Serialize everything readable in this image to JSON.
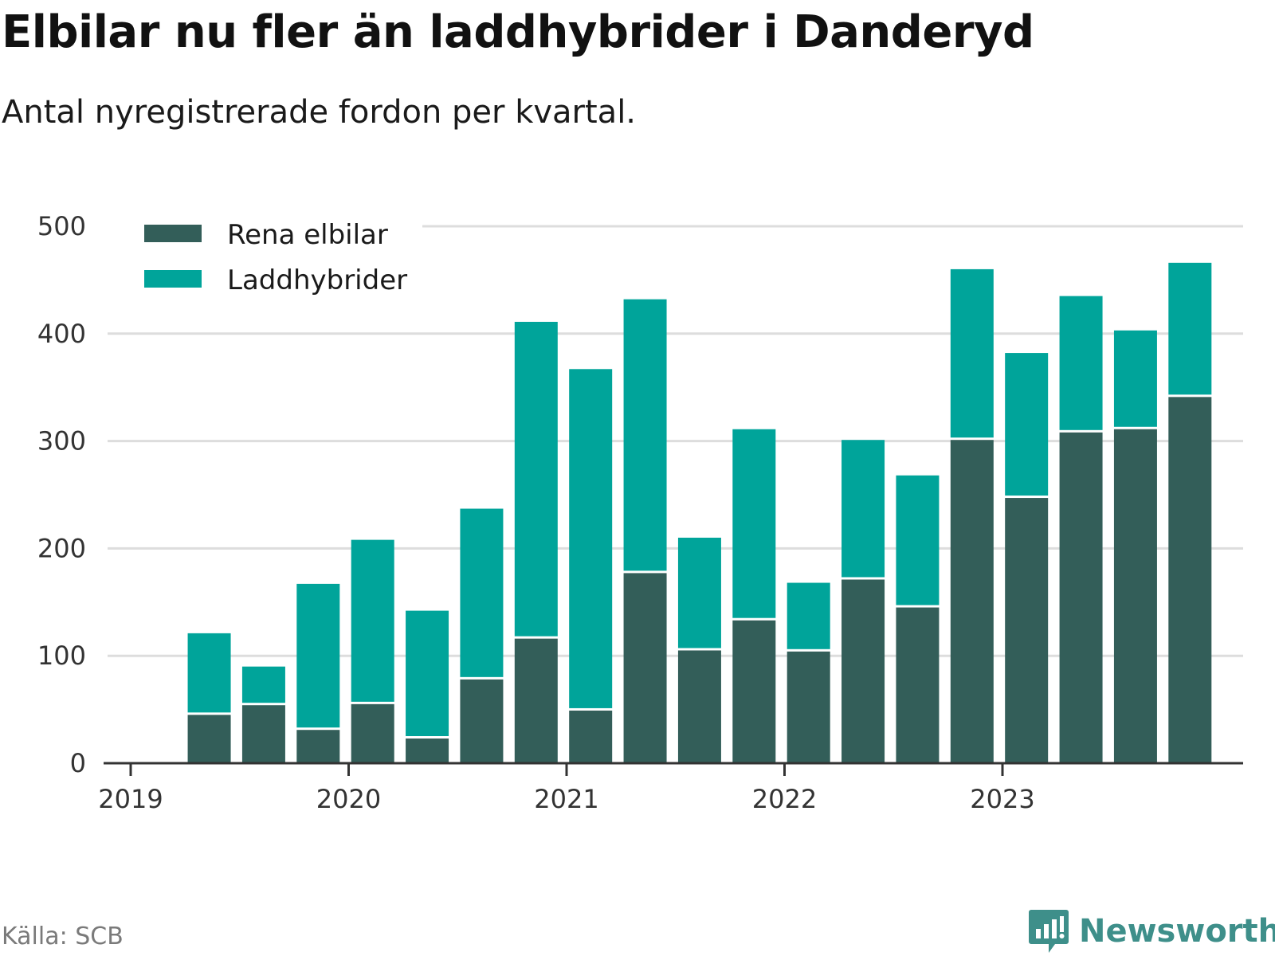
{
  "header": {
    "title": "Elbilar nu fler än laddhybrider i Danderyd",
    "subtitle": "Antal nyregistrerade fordon per kvartal."
  },
  "footer": {
    "source": "Källa: SCB",
    "brand": "Newsworthy"
  },
  "colors": {
    "rena_elbilar": "#335e59",
    "laddhybrider": "#00a49a",
    "grid": "#dddddd",
    "axis": "#333333",
    "brand": "#3e8f8a"
  },
  "chart_data": {
    "type": "bar",
    "stacked": true,
    "title": "Elbilar nu fler än laddhybrider i Danderyd",
    "subtitle": "Antal nyregistrerade fordon per kvartal.",
    "xlabel": "",
    "ylabel": "",
    "ylim": [
      0,
      500
    ],
    "yticks": [
      0,
      100,
      200,
      300,
      400,
      500
    ],
    "xticks": [
      "2019",
      "2020",
      "2021",
      "2022",
      "2023"
    ],
    "legend_position": "top-left",
    "grid": true,
    "categories": [
      "2019 Q2",
      "2019 Q3",
      "2019 Q4",
      "2020 Q1",
      "2020 Q2",
      "2020 Q3",
      "2020 Q4",
      "2021 Q1",
      "2021 Q2",
      "2021 Q3",
      "2021 Q4",
      "2022 Q1",
      "2022 Q2",
      "2022 Q3",
      "2022 Q4",
      "2023 Q1",
      "2023 Q2",
      "2023 Q3",
      "2023 Q4"
    ],
    "series": [
      {
        "name": "Rena elbilar",
        "values": [
          45,
          54,
          31,
          55,
          23,
          78,
          116,
          49,
          177,
          105,
          133,
          104,
          171,
          145,
          301,
          247,
          308,
          311,
          341
        ]
      },
      {
        "name": "Laddhybrider",
        "values": [
          76,
          36,
          136,
          153,
          119,
          159,
          295,
          318,
          255,
          105,
          178,
          64,
          130,
          123,
          159,
          135,
          127,
          92,
          125
        ]
      }
    ]
  }
}
